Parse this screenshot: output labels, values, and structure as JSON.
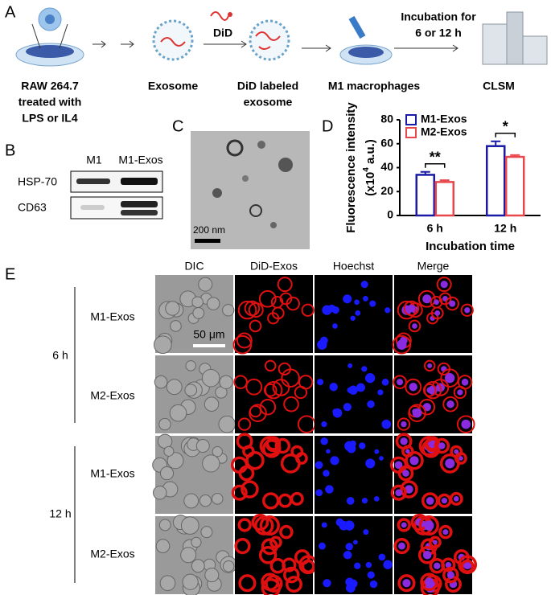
{
  "panel_labels": [
    "A",
    "B",
    "C",
    "D",
    "E"
  ],
  "schematic": {
    "source": [
      "RAW 264.7",
      "treated with",
      "LPS or IL4"
    ],
    "exosome": "Exosome",
    "dye": "DiD",
    "labeled": [
      "DiD labeled",
      "exosome"
    ],
    "cells": "M1 macrophages",
    "incubation": [
      "Incubation for",
      "6 or 12 h"
    ],
    "microscope": "CLSM"
  },
  "blot": {
    "lanes": [
      "M1",
      "M1-Exos"
    ],
    "proteins": [
      "HSP-70",
      "CD63"
    ]
  },
  "tem": {
    "scale_bar": "200 nm"
  },
  "chart_data": {
    "type": "bar",
    "categories": [
      "6 h",
      "12 h"
    ],
    "series": [
      {
        "name": "M1-Exos",
        "color": "#1a1aa6",
        "values": [
          34,
          58
        ],
        "errors": [
          2.5,
          4
        ]
      },
      {
        "name": "M2-Exos",
        "color": "#e8474c",
        "values": [
          28,
          49
        ],
        "errors": [
          1.5,
          1.5
        ]
      }
    ],
    "bar_style": "outline",
    "ylim": [
      0,
      80
    ],
    "yticks": [
      0,
      20,
      40,
      60,
      80
    ],
    "y_label": "Fluorescence intensity",
    "y_label_unit": {
      "pre": "(x10",
      "sup": "4",
      "post": " a.u.)"
    },
    "x_label": "Incubation time",
    "significance": [
      "**",
      "*"
    ],
    "legend": "upper left"
  },
  "microscopy": {
    "columns": [
      "DIC",
      "DiD-Exos",
      "Hoechst",
      "Merge"
    ],
    "column_colors": [
      "#000000",
      "#e00000",
      "#0000cc",
      "#000000"
    ],
    "time_points": [
      "6 h",
      "12 h"
    ],
    "groups": [
      "M1-Exos",
      "M2-Exos",
      "M1-Exos",
      "M2-Exos"
    ],
    "scale_bar": "50 μm"
  }
}
